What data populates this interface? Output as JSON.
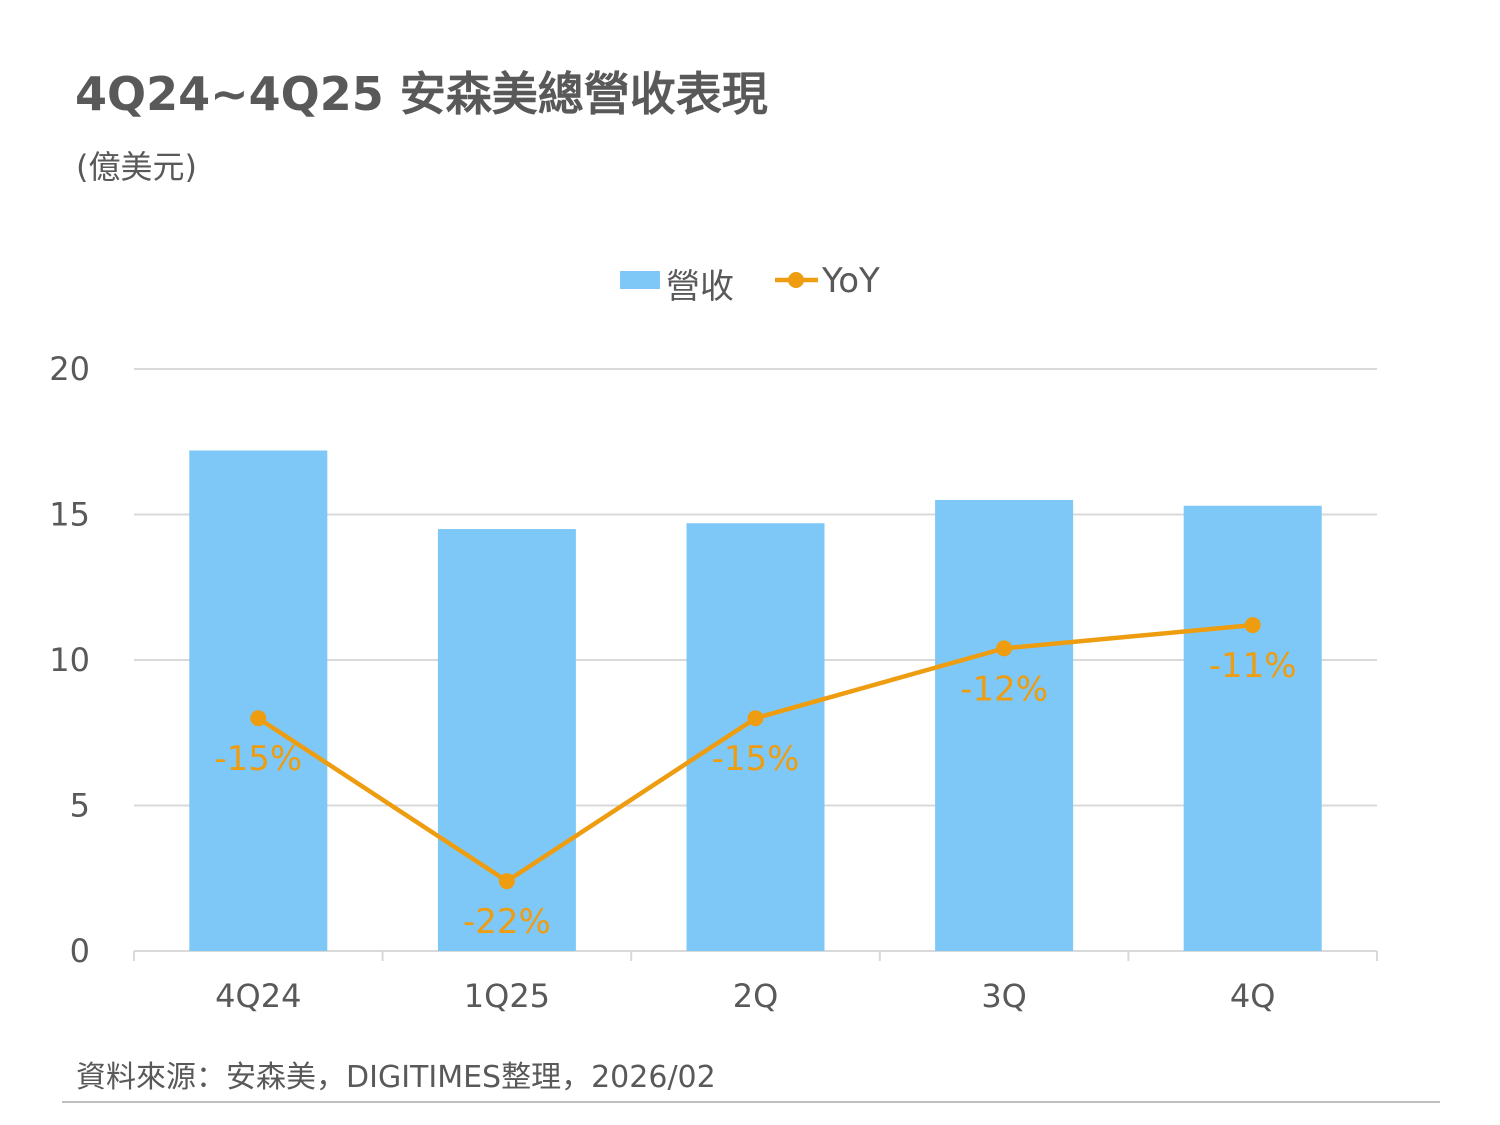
{
  "title": "4Q24~4Q25 安森美總營收表現",
  "unit": "(億美元)",
  "source": "資料來源：安森美，DIGITIMES整理，2026/02",
  "colors": {
    "bar": "#7EC8F8",
    "line": "#EE9C10",
    "label": "#EE9C10",
    "text": "#595959",
    "grid": "#D9D9D9"
  },
  "chart_data": {
    "type": "bar",
    "categories": [
      "4Q24",
      "1Q25",
      "2Q",
      "3Q",
      "4Q"
    ],
    "series": [
      {
        "name": "營收",
        "type": "bar",
        "values": [
          17.2,
          14.5,
          14.7,
          15.5,
          15.3
        ]
      },
      {
        "name": "YoY",
        "type": "line",
        "marker": "circle",
        "values": [
          8.0,
          2.4,
          8.0,
          10.4,
          11.2
        ],
        "data_labels": [
          "-15%",
          "-22%",
          "-15%",
          "-12%",
          "-11%"
        ]
      }
    ],
    "yticks": [
      0,
      5,
      10,
      15,
      20
    ],
    "ylim": [
      0,
      20
    ],
    "grid": true,
    "legend_position": "top"
  }
}
